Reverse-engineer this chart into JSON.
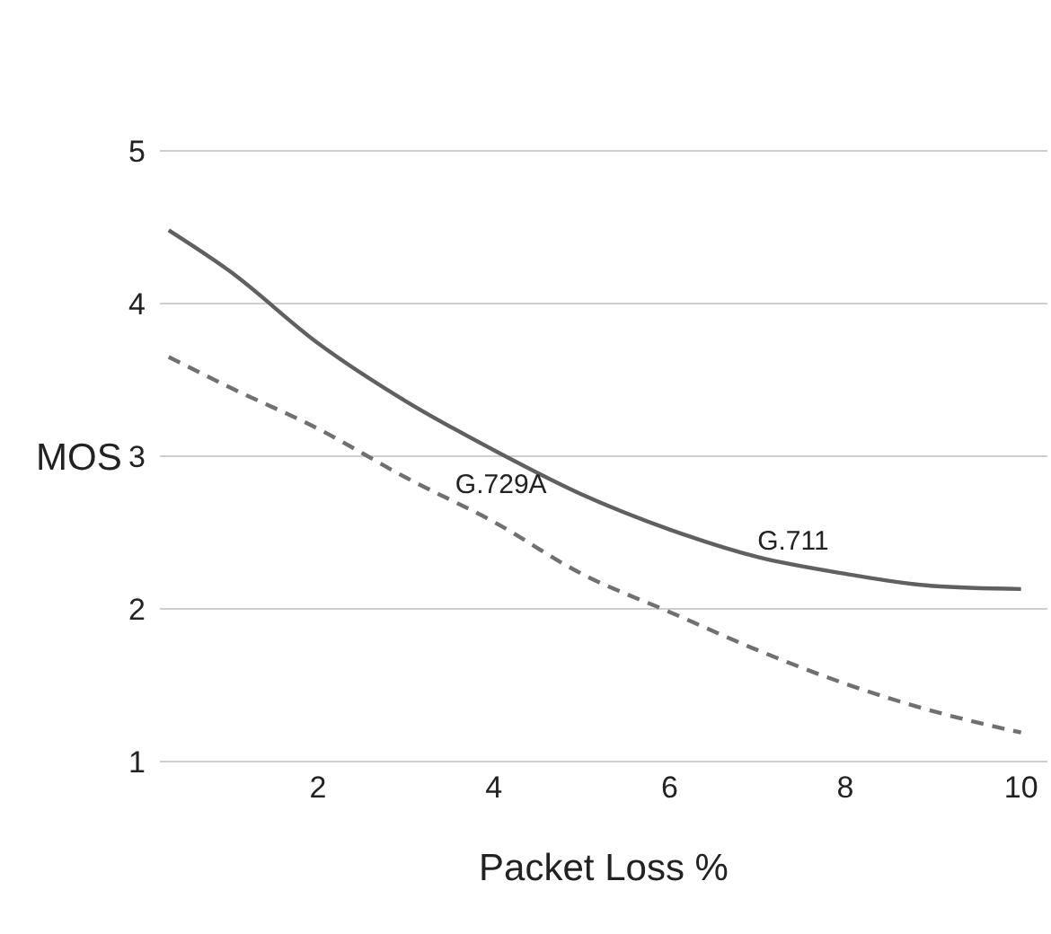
{
  "chart_data": {
    "type": "line",
    "xlabel": "Packet Loss %",
    "ylabel": "MOS",
    "xlim": [
      0.2,
      10.3
    ],
    "xticks": [
      2,
      4,
      6,
      8,
      10
    ],
    "ylim": [
      1,
      5
    ],
    "yticks": [
      1,
      2,
      3,
      4,
      5
    ],
    "grid": "y",
    "legend": false,
    "marker": "none",
    "x": [
      0.3,
      1,
      2,
      3,
      4,
      5,
      6,
      7,
      8,
      9,
      10
    ],
    "series": [
      {
        "name": "G.711",
        "color": "#606060",
        "line_style": "solid",
        "values": [
          4.48,
          4.21,
          3.74,
          3.36,
          3.04,
          2.75,
          2.52,
          2.34,
          2.23,
          2.15,
          2.13
        ]
      },
      {
        "name": "G.729A",
        "color": "#707070",
        "line_style": "dashed",
        "values": [
          3.65,
          3.45,
          3.18,
          2.86,
          2.57,
          2.23,
          1.98,
          1.73,
          1.51,
          1.33,
          1.19
        ]
      }
    ]
  }
}
